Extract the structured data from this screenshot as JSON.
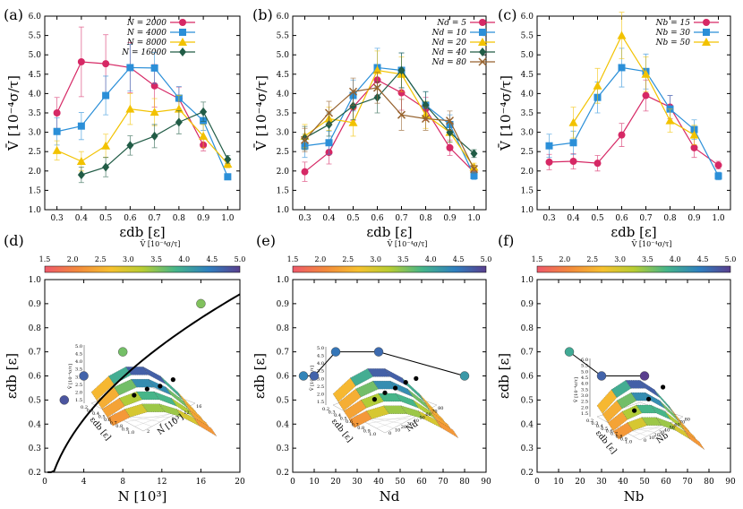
{
  "colors": {
    "red": "#d62865",
    "blue": "#2b8fd8",
    "yellow": "#f2c200",
    "green": "#215c46",
    "brown": "#96622e",
    "ramp": [
      "#ef5a6b",
      "#f38a3c",
      "#f6c12f",
      "#b8cd33",
      "#46b58a",
      "#2f7fbf",
      "#5a3f8e"
    ]
  },
  "chart_data": [
    {
      "id": "a",
      "panel_label": "(a)",
      "type": "line",
      "x": [
        0.3,
        0.4,
        0.5,
        0.6,
        0.7,
        0.8,
        0.9,
        1.0
      ],
      "xlabel": "εdb [ε]",
      "ylabel": "V̄ [10⁻⁴σ/τ]",
      "xlim": [
        0.25,
        1.05
      ],
      "ylim": [
        1.0,
        6.0
      ],
      "xticks": [
        "0.3",
        "0.4",
        "0.5",
        "0.6",
        "0.7",
        "0.8",
        "0.9",
        "1.0"
      ],
      "yticks": [
        "1.0",
        "1.5",
        "2.0",
        "2.5",
        "3.0",
        "3.5",
        "4.0",
        "4.5",
        "5.0",
        "5.5",
        "6.0"
      ],
      "series": [
        {
          "name": "N = 2000",
          "color": "red",
          "marker": "circle",
          "values": [
            3.5,
            4.82,
            4.77,
            4.67,
            4.2,
            3.87,
            2.67,
            null
          ],
          "errors": [
            0.4,
            0.9,
            0.75,
            0.65,
            0.55,
            0.3,
            0.15,
            0
          ]
        },
        {
          "name": "N = 4000",
          "color": "blue",
          "marker": "square",
          "values": [
            3.02,
            3.16,
            3.95,
            4.67,
            4.66,
            3.88,
            3.3,
            1.85
          ],
          "errors": [
            0.35,
            0.35,
            0.5,
            0.6,
            0.4,
            0.3,
            0.25,
            0.05
          ]
        },
        {
          "name": "N = 8000",
          "color": "yellow",
          "marker": "triangle",
          "values": [
            2.53,
            2.25,
            2.65,
            3.6,
            3.52,
            3.6,
            2.9,
            2.18
          ],
          "errors": [
            0.25,
            0.25,
            0.3,
            0.4,
            0.35,
            0.35,
            0.3,
            0.1
          ]
        },
        {
          "name": "N = 16000",
          "color": "green",
          "marker": "diamond",
          "values": [
            null,
            1.9,
            2.1,
            2.66,
            2.9,
            3.26,
            3.53,
            2.3
          ],
          "errors": [
            0,
            0.2,
            0.25,
            0.25,
            0.3,
            0.3,
            0.25,
            0.1
          ]
        }
      ]
    },
    {
      "id": "b",
      "panel_label": "(b)",
      "type": "line",
      "x": [
        0.3,
        0.4,
        0.5,
        0.6,
        0.7,
        0.8,
        0.9,
        1.0
      ],
      "xlabel": "εdb [ε]",
      "ylabel": "V̄ [10⁻⁴σ/τ]",
      "xlim": [
        0.25,
        1.05
      ],
      "ylim": [
        1.0,
        6.0
      ],
      "xticks": [
        "0.3",
        "0.4",
        "0.5",
        "0.6",
        "0.7",
        "0.8",
        "0.9",
        "1.0"
      ],
      "yticks": [
        "1.0",
        "1.5",
        "2.0",
        "2.5",
        "3.0",
        "3.5",
        "4.0",
        "4.5",
        "5.0",
        "5.5",
        "6.0"
      ],
      "series": [
        {
          "name": "Nd = 5",
          "color": "red",
          "marker": "circle",
          "values": [
            1.98,
            2.48,
            3.65,
            4.35,
            4.02,
            3.6,
            2.6,
            1.97
          ],
          "errors": [
            0.25,
            0.3,
            0.35,
            0.4,
            0.45,
            0.3,
            0.2,
            0.1
          ]
        },
        {
          "name": "Nd = 10",
          "color": "blue",
          "marker": "square",
          "values": [
            2.65,
            2.73,
            3.95,
            4.67,
            4.6,
            3.7,
            3.2,
            1.88
          ],
          "errors": [
            0.3,
            0.3,
            0.4,
            0.5,
            0.45,
            0.35,
            0.25,
            0.1
          ]
        },
        {
          "name": "Nd = 20",
          "color": "yellow",
          "marker": "triangle",
          "values": [
            2.9,
            3.35,
            3.25,
            4.6,
            4.5,
            3.45,
            3.0,
            2.1
          ],
          "errors": [
            0.3,
            0.3,
            0.35,
            0.5,
            0.45,
            0.35,
            0.25,
            0.1
          ]
        },
        {
          "name": "Nd = 40",
          "color": "green",
          "marker": "diamond",
          "values": [
            2.85,
            3.2,
            3.68,
            3.9,
            4.6,
            3.7,
            3.0,
            2.45
          ],
          "errors": [
            0.3,
            0.3,
            0.35,
            0.4,
            0.45,
            0.35,
            0.25,
            0.1
          ]
        },
        {
          "name": "Nd = 80",
          "color": "brown",
          "marker": "x",
          "values": [
            2.8,
            3.5,
            4.05,
            4.15,
            3.45,
            3.35,
            3.3,
            2.05
          ],
          "errors": [
            0.3,
            0.3,
            0.35,
            0.4,
            0.4,
            0.3,
            0.25,
            0.1
          ]
        }
      ]
    },
    {
      "id": "c",
      "panel_label": "(c)",
      "type": "line",
      "x": [
        0.3,
        0.4,
        0.5,
        0.6,
        0.7,
        0.8,
        0.9,
        1.0
      ],
      "xlabel": "εdb [ε]",
      "ylabel": "V̄ [10⁻⁴σ/τ]",
      "xlim": [
        0.25,
        1.05
      ],
      "ylim": [
        1.0,
        6.0
      ],
      "xticks": [
        "0.3",
        "0.4",
        "0.5",
        "0.6",
        "0.7",
        "0.8",
        "0.9",
        "1.0"
      ],
      "yticks": [
        "1.0",
        "1.5",
        "2.0",
        "2.5",
        "3.0",
        "3.5",
        "4.0",
        "4.5",
        "5.0",
        "5.5",
        "6.0"
      ],
      "series": [
        {
          "name": "Nb = 15",
          "color": "red",
          "marker": "circle",
          "values": [
            2.23,
            2.25,
            2.2,
            2.93,
            3.95,
            3.65,
            2.6,
            2.15
          ],
          "errors": [
            0.2,
            0.2,
            0.2,
            0.3,
            0.4,
            0.3,
            0.25,
            0.1
          ]
        },
        {
          "name": "Nb = 30",
          "color": "blue",
          "marker": "square",
          "values": [
            2.65,
            2.73,
            3.9,
            4.67,
            4.57,
            3.6,
            3.07,
            1.87
          ],
          "errors": [
            0.3,
            0.3,
            0.4,
            0.5,
            0.45,
            0.35,
            0.25,
            0.1
          ]
        },
        {
          "name": "Nb = 50",
          "color": "yellow",
          "marker": "triangle",
          "values": [
            null,
            3.25,
            4.2,
            5.5,
            4.5,
            3.3,
            2.93,
            null
          ],
          "errors": [
            0,
            0.4,
            0.45,
            0.6,
            0.45,
            0.3,
            0.25,
            0
          ]
        }
      ]
    },
    {
      "id": "d",
      "panel_label": "(d)",
      "type": "scatter",
      "xlabel": "N [10³]",
      "ylabel": "εdb [ε]",
      "xlim": [
        0,
        20
      ],
      "ylim": [
        0.2,
        1.0
      ],
      "xticks": [
        "0",
        "4",
        "8",
        "12",
        "16",
        "20"
      ],
      "xtick_values": [
        0,
        4,
        8,
        12,
        16,
        20
      ],
      "yticks": [
        "0.2",
        "0.3",
        "0.4",
        "0.5",
        "0.6",
        "0.7",
        "0.8",
        "0.9",
        "1.0"
      ],
      "points": [
        {
          "x": 2,
          "y": 0.5,
          "v": 4.8
        },
        {
          "x": 4,
          "y": 0.6,
          "v": 4.67
        },
        {
          "x": 8,
          "y": 0.7,
          "v": 3.6
        },
        {
          "x": 16,
          "y": 0.9,
          "v": 3.53
        }
      ],
      "curve": "fit line through optimum, rising as sqrt-like",
      "colorbar": {
        "title": "V̄ [10⁻⁴σ/τ]",
        "range": [
          1.5,
          5.0
        ],
        "ticks": [
          "1.5",
          "2.0",
          "2.5",
          "3.0",
          "3.5",
          "4.0",
          "4.5",
          "5.0"
        ]
      },
      "inset": {
        "zlabel": "V̄ [10⁻⁴σ/τ]",
        "zticks": [
          "1.5",
          "2.0",
          "2.5",
          "3.0",
          "3.5",
          "4.0",
          "4.5",
          "5.0"
        ],
        "xlabel": "εdb [ε]",
        "xticks": [
          "0.2",
          "0.3",
          "0.4",
          "0.5",
          "0.6",
          "0.7",
          "0.8",
          "0.9",
          "1.0"
        ],
        "ylabel": "N [10³]",
        "yticks": [
          "2",
          "4",
          "8",
          "12",
          "16"
        ]
      }
    },
    {
      "id": "e",
      "panel_label": "(e)",
      "type": "scatter",
      "xlabel": "Nd",
      "ylabel": "εdb [ε]",
      "xlim": [
        0,
        90
      ],
      "ylim": [
        0.2,
        1.0
      ],
      "xticks": [
        "0",
        "10",
        "20",
        "30",
        "40",
        "50",
        "60",
        "70",
        "80",
        "90"
      ],
      "xtick_values": [
        0,
        10,
        20,
        30,
        40,
        50,
        60,
        70,
        80,
        90
      ],
      "yticks": [
        "0.2",
        "0.3",
        "0.4",
        "0.5",
        "0.6",
        "0.7",
        "0.8",
        "0.9",
        "1.0"
      ],
      "points": [
        {
          "x": 5,
          "y": 0.6,
          "v": 4.35
        },
        {
          "x": 10,
          "y": 0.6,
          "v": 4.67
        },
        {
          "x": 20,
          "y": 0.7,
          "v": 4.5
        },
        {
          "x": 40,
          "y": 0.7,
          "v": 4.6
        },
        {
          "x": 80,
          "y": 0.6,
          "v": 4.15
        }
      ],
      "colorbar": {
        "title": "V̄ [10⁻⁴σ/τ]",
        "range": [
          1.5,
          5.0
        ],
        "ticks": [
          "1.5",
          "2.0",
          "2.5",
          "3.0",
          "3.5",
          "4.0",
          "4.5",
          "5.0"
        ]
      },
      "inset": {
        "zlabel": "V̄ [10⁻⁴σ/τ]",
        "zticks": [
          "1.5",
          "2.0",
          "2.5",
          "3.0",
          "3.5",
          "4.0",
          "4.5",
          "5.0"
        ],
        "xlabel": "εdb [ε]",
        "xticks": [
          "0.2",
          "0.3",
          "0.4",
          "0.5",
          "0.6",
          "0.7",
          "0.8",
          "0.9",
          "1.0"
        ],
        "ylabel": "Nd",
        "yticks": [
          "0",
          "10",
          "20",
          "30",
          "40",
          "50",
          "60",
          "70",
          "80"
        ]
      }
    },
    {
      "id": "f",
      "panel_label": "(f)",
      "type": "scatter",
      "xlabel": "Nb",
      "ylabel": "εdb [ε]",
      "xlim": [
        0,
        90
      ],
      "ylim": [
        0.2,
        1.0
      ],
      "xticks": [
        "0",
        "10",
        "20",
        "30",
        "40",
        "50",
        "60",
        "70",
        "80",
        "90"
      ],
      "xtick_values": [
        0,
        10,
        20,
        30,
        40,
        50,
        60,
        70,
        80,
        90
      ],
      "yticks": [
        "0.2",
        "0.3",
        "0.4",
        "0.5",
        "0.6",
        "0.7",
        "0.8",
        "0.9",
        "1.0"
      ],
      "points": [
        {
          "x": 15,
          "y": 0.7,
          "v": 3.95
        },
        {
          "x": 30,
          "y": 0.6,
          "v": 4.67
        },
        {
          "x": 50,
          "y": 0.6,
          "v": 5.5
        }
      ],
      "colorbar": {
        "title": "V̄ [10⁻⁴σ/τ]",
        "range": [
          1.5,
          5.0
        ],
        "ticks": [
          "1.5",
          "2.0",
          "2.5",
          "3.0",
          "3.5",
          "4.0",
          "4.5",
          "5.0"
        ]
      },
      "inset": {
        "zlabel": "V̄ [10⁻⁴σ/τ]",
        "zticks": [
          "1.5",
          "2.0",
          "2.5",
          "3.0",
          "3.5",
          "4.0",
          "4.5",
          "5.0",
          "5.5",
          "6.0"
        ],
        "xlabel": "εdb [ε]",
        "xticks": [
          "0.2",
          "0.3",
          "0.4",
          "0.5",
          "0.6",
          "0.7",
          "0.8",
          "0.9",
          "1.0"
        ],
        "ylabel": "Nb",
        "yticks": [
          "0",
          "10",
          "20",
          "30",
          "40",
          "50",
          "60",
          "70",
          "80"
        ]
      }
    }
  ]
}
